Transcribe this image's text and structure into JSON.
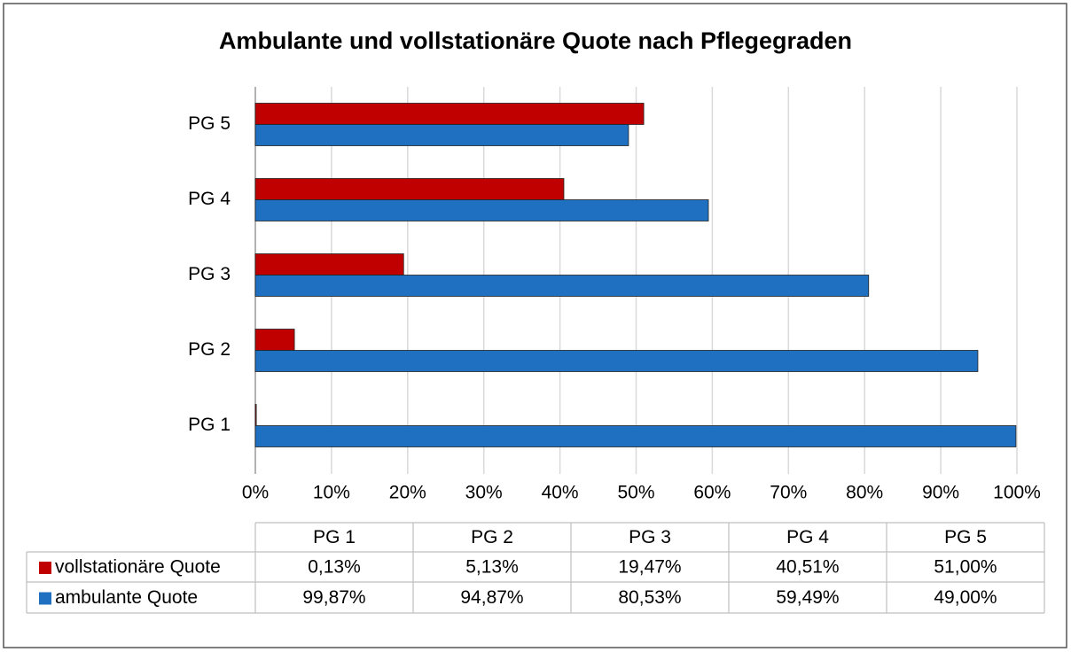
{
  "chart_data": {
    "type": "barh",
    "title": "Ambulante und vollstationäre Quote nach Pflegegraden",
    "categories": [
      "PG 1",
      "PG 2",
      "PG 3",
      "PG 4",
      "PG 5"
    ],
    "series": [
      {
        "name": "vollstationäre Quote",
        "color": "#c00000",
        "values": [
          0.13,
          5.13,
          19.47,
          40.51,
          51.0
        ],
        "value_labels": [
          "0,13%",
          "5,13%",
          "19,47%",
          "40,51%",
          "51,00%"
        ]
      },
      {
        "name": "ambulante Quote",
        "color": "#1f70c1",
        "values": [
          99.87,
          94.87,
          80.53,
          59.49,
          49.0
        ],
        "value_labels": [
          "99,87%",
          "94,87%",
          "80,53%",
          "59,49%",
          "49,00%"
        ]
      }
    ],
    "xlim": [
      0,
      100
    ],
    "xticks": [
      {
        "value": 0,
        "label": "0%"
      },
      {
        "value": 10,
        "label": "10%"
      },
      {
        "value": 20,
        "label": "20%"
      },
      {
        "value": 30,
        "label": "30%"
      },
      {
        "value": 40,
        "label": "40%"
      },
      {
        "value": 50,
        "label": "50%"
      },
      {
        "value": 60,
        "label": "60%"
      },
      {
        "value": 70,
        "label": "70%"
      },
      {
        "value": 80,
        "label": "80%"
      },
      {
        "value": 90,
        "label": "90%"
      },
      {
        "value": 100,
        "label": "100%"
      }
    ],
    "grid": true
  }
}
